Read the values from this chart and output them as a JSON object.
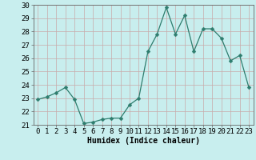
{
  "x": [
    0,
    1,
    2,
    3,
    4,
    5,
    6,
    7,
    8,
    9,
    10,
    11,
    12,
    13,
    14,
    15,
    16,
    17,
    18,
    19,
    20,
    21,
    22,
    23
  ],
  "y": [
    22.9,
    23.1,
    23.4,
    23.8,
    22.9,
    21.1,
    21.2,
    21.4,
    21.5,
    21.5,
    22.5,
    23.0,
    26.5,
    27.8,
    29.8,
    27.8,
    29.2,
    26.5,
    28.2,
    28.2,
    27.5,
    25.8,
    26.2,
    23.8
  ],
  "xlabel": "Humidex (Indice chaleur)",
  "line_color": "#2e7d6e",
  "marker": "D",
  "marker_size": 2.5,
  "bg_color": "#c8eeee",
  "grid_color": "#aadddd",
  "ylim": [
    21,
    30
  ],
  "xlim": [
    -0.5,
    23.5
  ],
  "yticks": [
    21,
    22,
    23,
    24,
    25,
    26,
    27,
    28,
    29,
    30
  ],
  "xticks": [
    0,
    1,
    2,
    3,
    4,
    5,
    6,
    7,
    8,
    9,
    10,
    11,
    12,
    13,
    14,
    15,
    16,
    17,
    18,
    19,
    20,
    21,
    22,
    23
  ],
  "xlabel_fontsize": 7,
  "tick_fontsize": 6.5
}
